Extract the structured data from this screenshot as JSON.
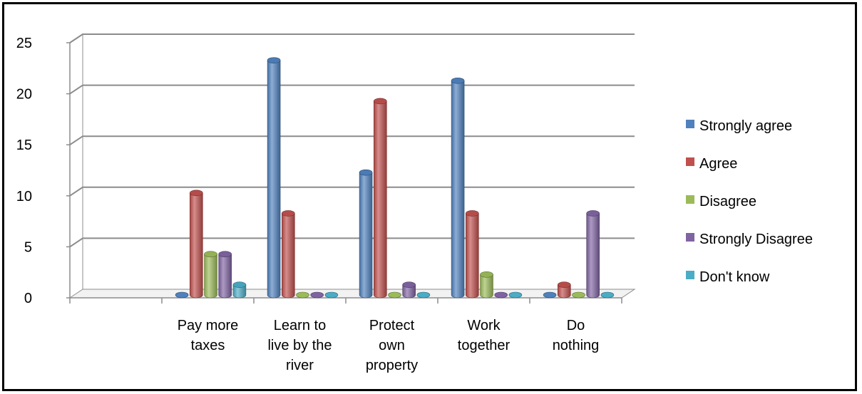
{
  "chart_data": {
    "type": "bar",
    "style": "3d-cylinder",
    "categories": [
      "",
      "Pay more taxes",
      "Learn to live by the river",
      "Protect own property",
      "Work together",
      "Do nothing"
    ],
    "category_lines": [
      [],
      [
        "Pay more",
        "taxes"
      ],
      [
        "Learn to",
        "live by the",
        "river"
      ],
      [
        "Protect",
        "own",
        "property"
      ],
      [
        "Work",
        "together"
      ],
      [
        "Do",
        "nothing"
      ]
    ],
    "series": [
      {
        "name": "Strongly agree",
        "color": "#4F81BD",
        "values": [
          null,
          0,
          23,
          12,
          21,
          0
        ]
      },
      {
        "name": "Agree",
        "color": "#C0504D",
        "values": [
          null,
          10,
          8,
          19,
          8,
          1
        ]
      },
      {
        "name": "Disagree",
        "color": "#9BBB59",
        "values": [
          null,
          4,
          0,
          0,
          2,
          0
        ]
      },
      {
        "name": "Strongly Disagree",
        "color": "#8064A2",
        "values": [
          null,
          4,
          0,
          1,
          0,
          8
        ]
      },
      {
        "name": "Don't know",
        "color": "#4BACC6",
        "values": [
          null,
          1,
          0,
          0,
          0,
          0
        ]
      }
    ],
    "y_ticks": [
      "0",
      "5",
      "10",
      "15",
      "20",
      "25"
    ],
    "ylim": [
      0,
      25
    ],
    "grid": true,
    "legend_position": "right"
  }
}
